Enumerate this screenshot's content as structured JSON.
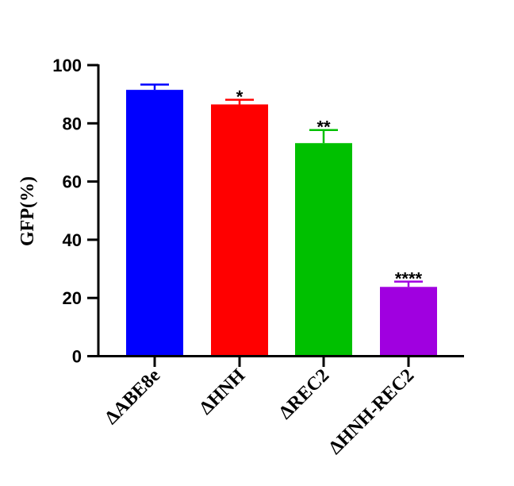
{
  "chart_data": {
    "type": "bar",
    "title": "",
    "xlabel": "",
    "ylabel": "GFP(%)",
    "ylim": [
      0,
      100
    ],
    "yticks": [
      "0",
      "20",
      "40",
      "60",
      "80",
      "100"
    ],
    "grid": false,
    "categories": [
      "ΔABE8e",
      "ΔHNH",
      "ΔREC2",
      "ΔHNH-REC2"
    ],
    "values": [
      91.5,
      86.5,
      73.2,
      23.8
    ],
    "errors": [
      1.8,
      1.6,
      4.5,
      1.8
    ],
    "significance": [
      "",
      "*",
      "**",
      "****"
    ],
    "colors": [
      "#0000ff",
      "#ff0000",
      "#00c000",
      "#a000e0"
    ]
  }
}
